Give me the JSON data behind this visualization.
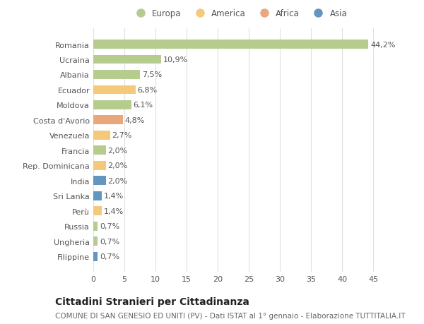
{
  "countries": [
    "Romania",
    "Ucraina",
    "Albania",
    "Ecuador",
    "Moldova",
    "Costa d'Avorio",
    "Venezuela",
    "Francia",
    "Rep. Dominicana",
    "India",
    "Sri Lanka",
    "Perù",
    "Russia",
    "Ungheria",
    "Filippine"
  ],
  "values": [
    44.2,
    10.9,
    7.5,
    6.8,
    6.1,
    4.8,
    2.7,
    2.0,
    2.0,
    2.0,
    1.4,
    1.4,
    0.7,
    0.7,
    0.7
  ],
  "labels": [
    "44,2%",
    "10,9%",
    "7,5%",
    "6,8%",
    "6,1%",
    "4,8%",
    "2,7%",
    "2,0%",
    "2,0%",
    "2,0%",
    "1,4%",
    "1,4%",
    "0,7%",
    "0,7%",
    "0,7%"
  ],
  "continents": [
    "Europa",
    "Europa",
    "Europa",
    "America",
    "Europa",
    "Africa",
    "America",
    "Europa",
    "America",
    "Asia",
    "Asia",
    "America",
    "Europa",
    "Europa",
    "Asia"
  ],
  "colors": {
    "Europa": "#b5cc8e",
    "America": "#f5c97a",
    "Africa": "#e8a87c",
    "Asia": "#6494c0"
  },
  "legend_order": [
    "Europa",
    "America",
    "Africa",
    "Asia"
  ],
  "xlim": [
    0,
    47
  ],
  "xticks": [
    0,
    5,
    10,
    15,
    20,
    25,
    30,
    35,
    40,
    45
  ],
  "title1": "Cittadini Stranieri per Cittadinanza",
  "title2": "COMUNE DI SAN GENESIO ED UNITI (PV) - Dati ISTAT al 1° gennaio - Elaborazione TUTTITALIA.IT",
  "background_color": "#ffffff",
  "bar_height": 0.6,
  "grid_color": "#e0e0e0",
  "text_color": "#555555",
  "label_fontsize": 8,
  "tick_fontsize": 8,
  "title1_fontsize": 10,
  "title2_fontsize": 7.5
}
